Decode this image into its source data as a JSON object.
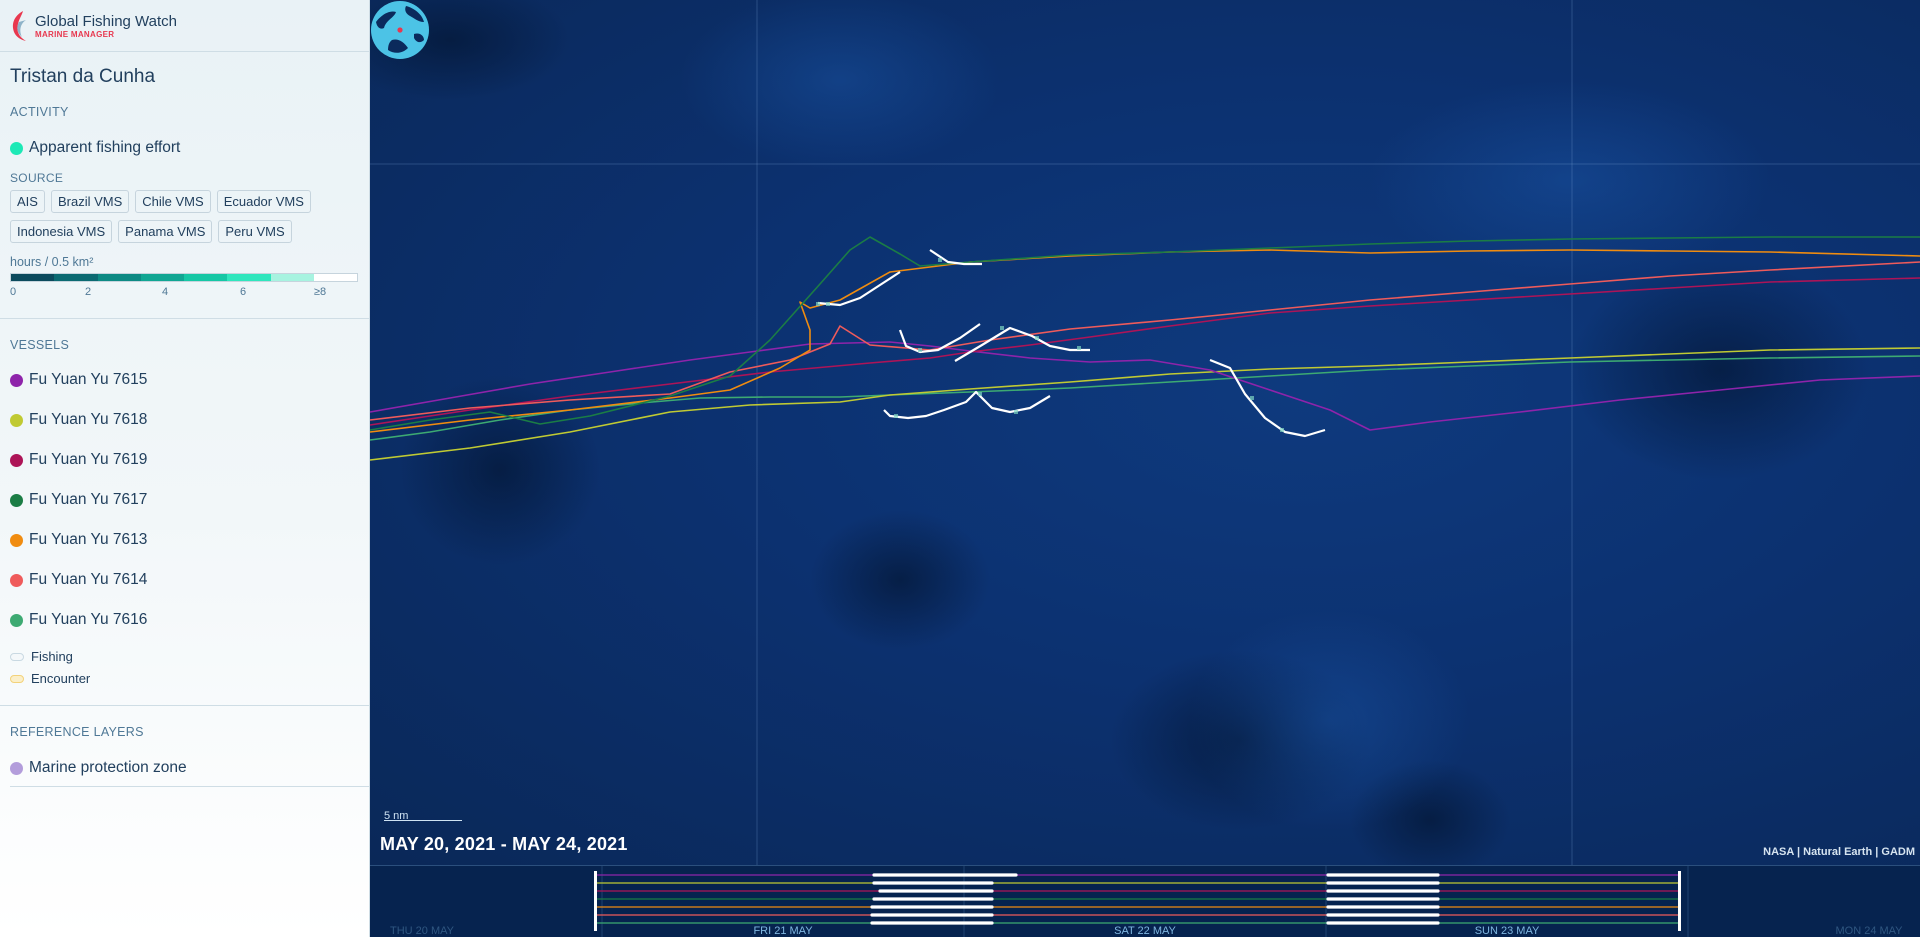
{
  "app": {
    "title": "Global Fishing Watch",
    "subtitle": "MARINE MANAGER"
  },
  "place_title": "Tristan da Cunha",
  "activity": {
    "section_label": "ACTIVITY",
    "layer": {
      "label": "Apparent fishing effort",
      "color": "#1de9b6"
    },
    "source_label": "SOURCE",
    "sources": [
      "AIS",
      "Brazil VMS",
      "Chile VMS",
      "Ecuador VMS",
      "Indonesia VMS",
      "Panama VMS",
      "Peru VMS"
    ],
    "legend": {
      "unit": "hours / 0.5 km²",
      "ticks": [
        "0",
        "2",
        "4",
        "6",
        "≥8"
      ],
      "colors": [
        "#0b4a5d",
        "#0b6a72",
        "#0d8a84",
        "#10a693",
        "#15c7a5",
        "#2fe6bd",
        "#a7f3e0",
        "#ffffff"
      ]
    }
  },
  "vessels": {
    "section_label": "VESSELS",
    "items": [
      {
        "name": "Fu Yuan Yu 7615",
        "color": "#8e24aa"
      },
      {
        "name": "Fu Yuan Yu 7618",
        "color": "#c0ca33"
      },
      {
        "name": "Fu Yuan Yu 7619",
        "color": "#ad1457"
      },
      {
        "name": "Fu Yuan Yu 7617",
        "color": "#1b7d45"
      },
      {
        "name": "Fu Yuan Yu 7613",
        "color": "#f08c10"
      },
      {
        "name": "Fu Yuan Yu 7614",
        "color": "#ef5b5b"
      },
      {
        "name": "Fu Yuan Yu 7616",
        "color": "#3daa72"
      }
    ],
    "legend": [
      {
        "label": "Fishing",
        "color": "#e6f0f5"
      },
      {
        "label": "Encounter",
        "color": "#f3d27a"
      }
    ]
  },
  "reference": {
    "section_label": "REFERENCE LAYERS",
    "items": [
      {
        "name": "Marine protection zone",
        "color": "#b39ddb"
      }
    ]
  },
  "map": {
    "scale_label": "5 nm",
    "date_range": "MAY 20, 2021 - MAY 24, 2021",
    "attribution": "NASA | Natural Earth | GADM"
  },
  "timebar": {
    "days": [
      "THU 20 MAY",
      "FRI 21 MAY",
      "SAT 22 MAY",
      "SUN 23 MAY",
      "MON 24 MAY"
    ]
  }
}
